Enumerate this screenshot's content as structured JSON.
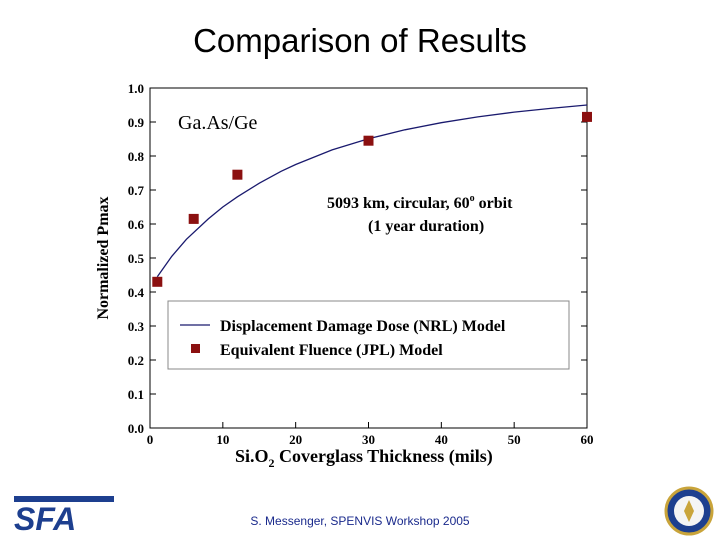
{
  "slide": {
    "title": "Comparison of Results",
    "footer": "S. Messenger, SPENVIS Workshop 2005"
  },
  "logos": {
    "left": "SFA",
    "right_icon": "dod-seal-icon"
  },
  "colors": {
    "marker": "#8b1010",
    "line": "#1a1a6e",
    "footer": "#1a2a8c",
    "logo": "#1d3f8f"
  },
  "chart_data": {
    "type": "line",
    "title": "",
    "inset_label": "Ga.As/Ge",
    "annotation_line1": "5093 km, circular, 60",
    "annotation_sup": "o",
    "annotation_line1_tail": " orbit",
    "annotation_line2": "(1 year duration)",
    "xlabel_prefix": "Si.O",
    "xlabel_sub": "2",
    "xlabel_suffix": " Coverglass Thickness (mils)",
    "ylabel": "Normalized Pmax",
    "xlim": [
      0,
      60
    ],
    "ylim": [
      0.0,
      1.0
    ],
    "x_ticks": [
      "0",
      "10",
      "20",
      "30",
      "40",
      "50",
      "60"
    ],
    "y_ticks": [
      "0.0",
      "0.1",
      "0.2",
      "0.3",
      "0.4",
      "0.5",
      "0.6",
      "0.7",
      "0.8",
      "0.9",
      "1.0"
    ],
    "legend_position": "center-right",
    "series": [
      {
        "name": "Displacement Damage Dose (NRL) Model",
        "kind": "line",
        "x": [
          1,
          3,
          5,
          8,
          10,
          12,
          15,
          18,
          20,
          25,
          30,
          35,
          40,
          45,
          50,
          55,
          60
        ],
        "y": [
          0.445,
          0.505,
          0.555,
          0.615,
          0.65,
          0.68,
          0.72,
          0.755,
          0.775,
          0.818,
          0.851,
          0.877,
          0.898,
          0.915,
          0.929,
          0.94,
          0.95
        ]
      },
      {
        "name": "Equivalent Fluence (JPL) Model",
        "kind": "marker",
        "x": [
          1,
          6,
          12,
          30,
          60
        ],
        "y": [
          0.43,
          0.615,
          0.745,
          0.845,
          0.915
        ]
      }
    ]
  }
}
